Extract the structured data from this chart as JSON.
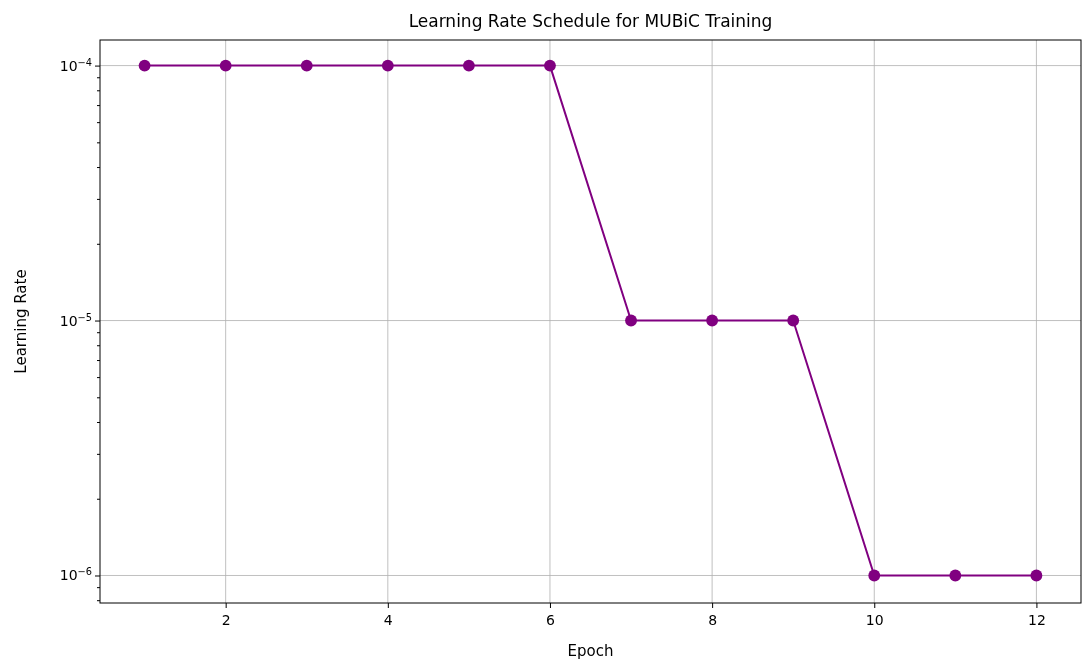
{
  "chart_data": {
    "type": "line",
    "title": "Learning Rate Schedule for MUBiC Training",
    "xlabel": "Epoch",
    "ylabel": "Learning Rate",
    "x": [
      1,
      2,
      3,
      4,
      5,
      6,
      7,
      8,
      9,
      10,
      11,
      12
    ],
    "series": [
      {
        "color": "#800080",
        "values": [
          0.0001,
          0.0001,
          0.0001,
          0.0001,
          0.0001,
          0.0001,
          1e-05,
          1e-05,
          1e-05,
          1e-06,
          1e-06,
          1e-06
        ]
      }
    ],
    "xlim": [
      0.45,
      12.55
    ],
    "xticks": [
      2,
      4,
      6,
      8,
      10,
      12
    ],
    "ylim": [
      7.8e-07,
      0.000126
    ],
    "yticks": [
      {
        "value": 1e-06,
        "label": "10$^{−6}$"
      },
      {
        "value": 1e-05,
        "label": "10$^{−5}$"
      },
      {
        "value": 0.0001,
        "label": "10$^{−4}$"
      },
      {
        "value": 8e-07,
        "label": null
      },
      {
        "value": 9e-07,
        "label": null
      },
      {
        "value": 2e-06,
        "label": null
      },
      {
        "value": 3e-06,
        "label": null
      },
      {
        "value": 4e-06,
        "label": null
      },
      {
        "value": 5e-06,
        "label": null
      },
      {
        "value": 6e-06,
        "label": null
      },
      {
        "value": 7e-06,
        "label": null
      },
      {
        "value": 8e-06,
        "label": null
      },
      {
        "value": 9e-06,
        "label": null
      },
      {
        "value": 2e-05,
        "label": null
      },
      {
        "value": 3e-05,
        "label": null
      },
      {
        "value": 4e-05,
        "label": null
      },
      {
        "value": 5e-05,
        "label": null
      },
      {
        "value": 6e-05,
        "label": null
      },
      {
        "value": 7e-05,
        "label": null
      },
      {
        "value": 8e-05,
        "label": null
      },
      {
        "value": 9e-05,
        "label": null
      }
    ],
    "log": true,
    "grid": true,
    "marker": "circle",
    "line_style": "solid"
  }
}
